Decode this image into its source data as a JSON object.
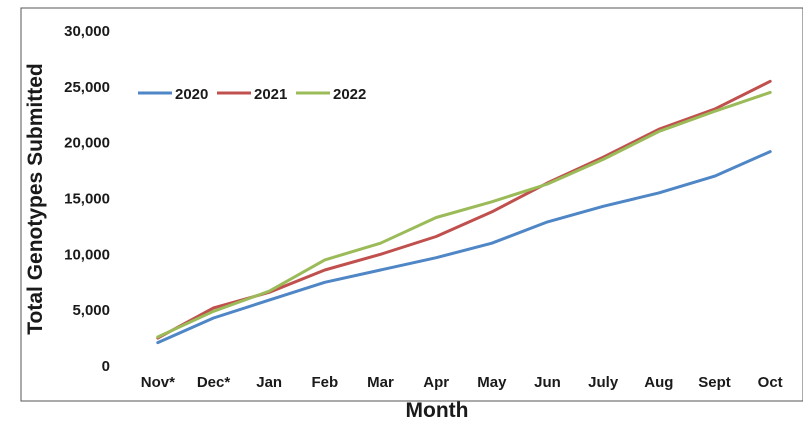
{
  "chart_data": {
    "type": "line",
    "title": "",
    "xlabel": "Month",
    "ylabel": "Total Genotypes Submitted",
    "categories": [
      "Nov*",
      "Dec*",
      "Jan",
      "Feb",
      "Mar",
      "Apr",
      "May",
      "Jun",
      "July",
      "Aug",
      "Sept",
      "Oct"
    ],
    "ylim": [
      0,
      30000
    ],
    "yticks": [
      0,
      5000,
      10000,
      15000,
      20000,
      25000,
      30000
    ],
    "ytick_labels": [
      "0",
      "5,000",
      "10,000",
      "15,000",
      "20,000",
      "25,000",
      "30,000"
    ],
    "grid": false,
    "legend_position": "top-left",
    "series": [
      {
        "name": "2020",
        "color": "#4f86c6",
        "values": [
          2100,
          4300,
          5900,
          7500,
          8600,
          9700,
          11000,
          12900,
          14300,
          15500,
          17000,
          19200
        ]
      },
      {
        "name": "2021",
        "color": "#c0504d",
        "values": [
          2500,
          5200,
          6600,
          8600,
          10000,
          11600,
          13800,
          16400,
          18700,
          21200,
          23000,
          25500
        ]
      },
      {
        "name": "2022",
        "color": "#9bbb59",
        "values": [
          2600,
          4900,
          6700,
          9500,
          11000,
          13300,
          14700,
          16300,
          18500,
          21000,
          22800,
          24500
        ]
      }
    ]
  }
}
